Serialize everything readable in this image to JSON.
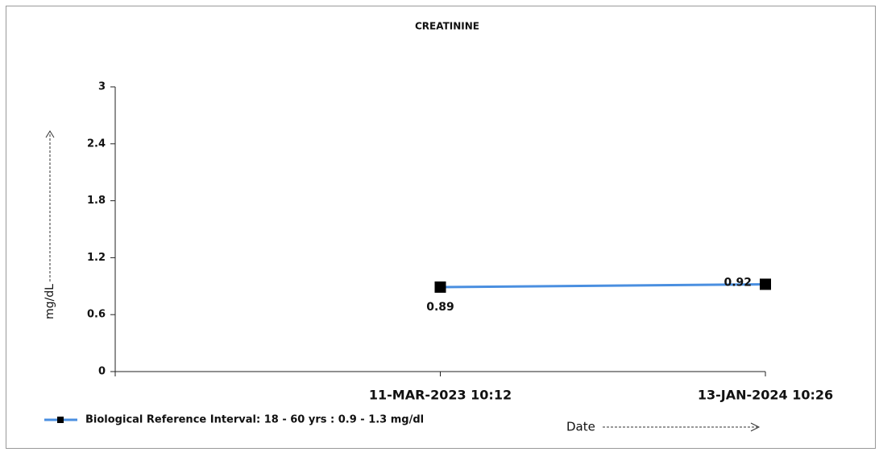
{
  "chart_data": {
    "type": "line",
    "title": "CREATININE",
    "x_label": "Date",
    "y_label": "mg/dL",
    "categories": [
      null,
      "11-MAR-2023 10:12",
      "13-JAN-2024 10:26"
    ],
    "series": [
      {
        "name": "Biological Reference Interval: 18 - 60 yrs : 0.9 - 1.3 mg/dl",
        "color": "#4a8fe0",
        "values": [
          null,
          0.89,
          0.92
        ]
      }
    ],
    "ylim": [
      0,
      3
    ],
    "yticks": [
      0,
      0.6,
      1.2,
      1.8,
      2.4,
      3
    ],
    "grid": false,
    "legend": "bottom-left"
  }
}
